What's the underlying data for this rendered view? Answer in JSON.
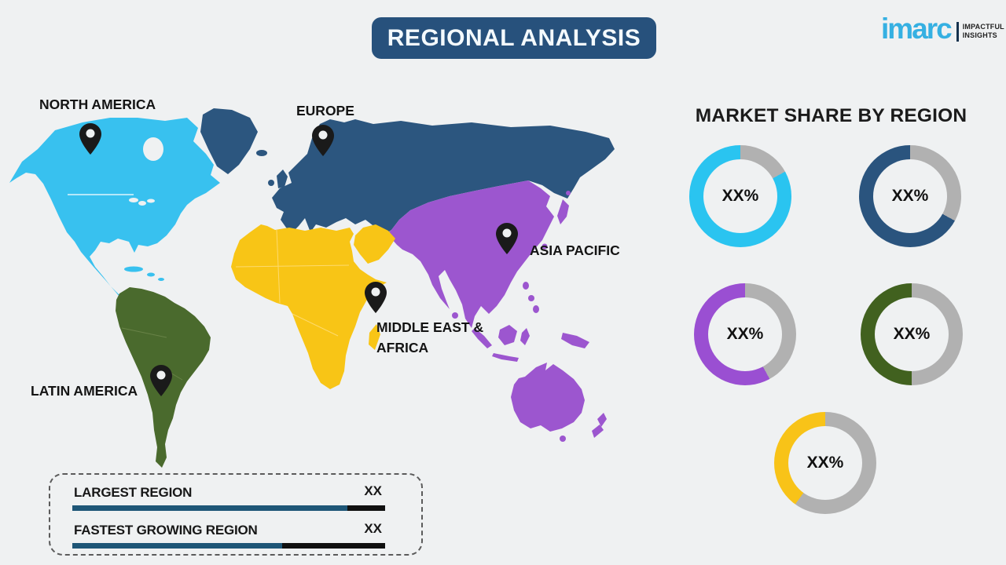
{
  "header": {
    "title": "REGIONAL ANALYSIS",
    "banner_color": "#27517c"
  },
  "logo": {
    "brand": "imarc",
    "tagline_line1": "IMPACTFUL",
    "tagline_line2": "INSIGHTS",
    "brand_color": "#35b0e2"
  },
  "map": {
    "regions": [
      {
        "name": "NORTH AMERICA",
        "color": "#38c1ef"
      },
      {
        "name": "EUROPE",
        "color": "#2c567f"
      },
      {
        "name": "ASIA PACIFIC",
        "color": "#9c56cf"
      },
      {
        "name": "MIDDLE EAST & AFRICA",
        "label_line1": "MIDDLE EAST &",
        "label_line2": "AFRICA",
        "color": "#f8c516"
      },
      {
        "name": "LATIN AMERICA",
        "color": "#4a6a2d"
      }
    ],
    "pin_color": "#1a1a1a"
  },
  "market_share": {
    "title": "MARKET SHARE BY REGION",
    "track_color": "#b1b1b1",
    "donuts": [
      {
        "region": "NORTH AMERICA",
        "value_label": "XX%",
        "color": "#2ac4f0",
        "fill_percent": 83
      },
      {
        "region": "EUROPE",
        "value_label": "XX%",
        "color": "#2a547e",
        "fill_percent": 67
      },
      {
        "region": "ASIA PACIFIC",
        "value_label": "XX%",
        "color": "#9a4fd2",
        "fill_percent": 58
      },
      {
        "region": "LATIN AMERICA",
        "value_label": "XX%",
        "color": "#41611f",
        "fill_percent": 50
      },
      {
        "region": "MIDDLE EAST & AFRICA",
        "value_label": "XX%",
        "color": "#f8c318",
        "fill_percent": 40
      }
    ]
  },
  "legend": {
    "rows": [
      {
        "label": "LARGEST REGION",
        "value": "XX",
        "primary_percent": 88
      },
      {
        "label": "FASTEST GROWING REGION",
        "value": "XX",
        "primary_percent": 67
      }
    ],
    "primary_color": "#1e5677",
    "secondary_color": "#101010"
  },
  "chart_data": {
    "type": "pie",
    "title": "MARKET SHARE BY REGION",
    "note": "Infographic template — all share values are placeholders shown as XX% / XX",
    "series": [
      {
        "name": "North America",
        "label": "XX%",
        "color": "#2ac4f0",
        "ring_filled_fraction": 0.83
      },
      {
        "name": "Europe",
        "label": "XX%",
        "color": "#2a547e",
        "ring_filled_fraction": 0.67
      },
      {
        "name": "Asia Pacific",
        "label": "XX%",
        "color": "#9a4fd2",
        "ring_filled_fraction": 0.58
      },
      {
        "name": "Latin America",
        "label": "XX%",
        "color": "#41611f",
        "ring_filled_fraction": 0.5
      },
      {
        "name": "Middle East & Africa",
        "label": "XX%",
        "color": "#f8c318",
        "ring_filled_fraction": 0.4
      }
    ],
    "legend_rows": [
      {
        "label": "LARGEST REGION",
        "value": "XX",
        "bar_filled_fraction": 0.88
      },
      {
        "label": "FASTEST GROWING REGION",
        "value": "XX",
        "bar_filled_fraction": 0.67
      }
    ],
    "legend_position": "bottom-left",
    "grid": false
  }
}
